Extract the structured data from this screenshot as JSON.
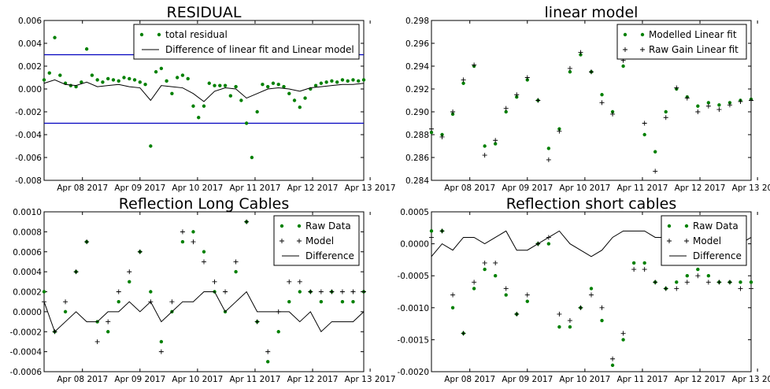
{
  "colors": {
    "green": "#008000",
    "black": "#000000",
    "blue": "#0000bf"
  },
  "chart_data": [
    {
      "type": "scatter",
      "title": "RESIDUAL",
      "x_ticks": [
        "Apr 08 2017",
        "Apr 09 2017",
        "Apr 10 2017",
        "Apr 11 2017",
        "Apr 12 2017",
        "Apr 13 2017"
      ],
      "y_ticks": [
        "0.006",
        "0.004",
        "0.002",
        "0.000",
        "-0.002",
        "-0.004",
        "-0.006",
        "-0.008"
      ],
      "ylim": [
        -0.008,
        0.006
      ],
      "legend_position": "top-right",
      "hlines": [
        0.003,
        -0.003
      ],
      "series": [
        {
          "name": "total residual",
          "marker": "dot",
          "color": "#008000",
          "x": [
            0.0,
            0.1,
            0.2,
            0.3,
            0.4,
            0.5,
            0.6,
            0.7,
            0.8,
            0.9,
            1.0,
            1.1,
            1.2,
            1.3,
            1.4,
            1.5,
            1.6,
            1.7,
            1.8,
            1.9,
            2.0,
            2.1,
            2.2,
            2.3,
            2.4,
            2.5,
            2.6,
            2.7,
            2.8,
            2.9,
            3.0,
            3.1,
            3.2,
            3.3,
            3.4,
            3.5,
            3.6,
            3.7,
            3.8,
            3.9,
            4.0,
            4.1,
            4.2,
            4.3,
            4.4,
            4.5,
            4.6,
            4.7,
            4.8,
            4.9,
            5.0,
            5.1,
            5.2,
            5.3,
            5.4,
            5.5,
            5.6,
            5.7,
            5.8,
            5.9,
            6.0
          ],
          "y": [
            0.0008,
            0.0014,
            0.0045,
            0.0012,
            0.0005,
            0.0003,
            0.0002,
            0.0006,
            0.0035,
            0.0012,
            0.0008,
            0.0006,
            0.0009,
            0.0008,
            0.0007,
            0.001,
            0.0009,
            0.0008,
            0.0006,
            0.0004,
            -0.005,
            0.0015,
            0.0018,
            0.0007,
            -0.0004,
            0.001,
            0.0012,
            0.0009,
            -0.0015,
            -0.0025,
            -0.0015,
            0.0005,
            0.0003,
            0.0003,
            0.0003,
            -0.0006,
            0.0002,
            -0.001,
            -0.003,
            -0.006,
            -0.002,
            0.0004,
            0.0002,
            0.0005,
            0.0004,
            0.0002,
            -0.0004,
            -0.001,
            -0.0016,
            -0.0008,
            0.0,
            0.0003,
            0.0005,
            0.0006,
            0.0007,
            0.0006,
            0.0008,
            0.0007,
            0.0008,
            0.0007,
            0.0008
          ]
        },
        {
          "name": "Difference of linear fit and Linear model",
          "marker": "line",
          "color": "#000000",
          "x": [
            0.0,
            0.2,
            0.4,
            0.6,
            0.8,
            1.0,
            1.2,
            1.4,
            1.6,
            1.8,
            2.0,
            2.2,
            2.4,
            2.6,
            2.8,
            3.0,
            3.2,
            3.4,
            3.6,
            3.8,
            4.0,
            4.2,
            4.4,
            4.6,
            4.8,
            5.0,
            5.2,
            5.4,
            5.6,
            5.8,
            6.0
          ],
          "y": [
            0.0005,
            0.0008,
            0.0004,
            0.0003,
            0.0006,
            0.0002,
            0.0003,
            0.0004,
            0.0002,
            0.0001,
            -0.001,
            0.0003,
            0.0002,
            0.0001,
            -0.0004,
            -0.0011,
            -0.0002,
            0.0001,
            0.0,
            -0.0008,
            -0.0004,
            0.0,
            0.0001,
            0.0,
            -0.0002,
            0.0001,
            0.0002,
            0.0003,
            0.0004,
            0.0004,
            0.0005
          ]
        }
      ]
    },
    {
      "type": "scatter",
      "title": "linear model",
      "x_ticks": [
        "Apr 08 2017",
        "Apr 09 2017",
        "Apr 10 2017",
        "Apr 11 2017",
        "Apr 12 2017",
        "Apr 13 2017"
      ],
      "y_ticks": [
        "0.298",
        "0.296",
        "0.294",
        "0.292",
        "0.290",
        "0.288",
        "0.286",
        "0.284"
      ],
      "ylim": [
        0.284,
        0.298
      ],
      "legend_position": "top-right",
      "series": [
        {
          "name": "Modelled Linear fit",
          "marker": "dot",
          "color": "#008000",
          "x": [
            0.0,
            0.2,
            0.4,
            0.6,
            0.8,
            1.0,
            1.2,
            1.4,
            1.6,
            1.8,
            2.0,
            2.2,
            2.4,
            2.6,
            2.8,
            3.0,
            3.2,
            3.4,
            3.6,
            3.8,
            4.0,
            4.2,
            4.4,
            4.6,
            4.8,
            5.0,
            5.2,
            5.4,
            5.6,
            5.8,
            6.0
          ],
          "y": [
            0.2882,
            0.288,
            0.2898,
            0.2925,
            0.294,
            0.287,
            0.2872,
            0.29,
            0.2913,
            0.2928,
            0.291,
            0.2868,
            0.2885,
            0.2935,
            0.295,
            0.2935,
            0.2915,
            0.29,
            0.294,
            0.2955,
            0.288,
            0.2865,
            0.29,
            0.292,
            0.2913,
            0.2905,
            0.2908,
            0.2906,
            0.2908,
            0.291,
            0.2911
          ]
        },
        {
          "name": "Raw Gain Linear fit",
          "marker": "plus",
          "color": "#000000",
          "x": [
            0.0,
            0.2,
            0.4,
            0.6,
            0.8,
            1.0,
            1.2,
            1.4,
            1.6,
            1.8,
            2.0,
            2.2,
            2.4,
            2.6,
            2.8,
            3.0,
            3.2,
            3.4,
            3.6,
            3.8,
            4.0,
            4.2,
            4.4,
            4.6,
            4.8,
            5.0,
            5.2,
            5.4,
            5.6,
            5.8,
            6.0
          ],
          "y": [
            0.2885,
            0.2878,
            0.29,
            0.2928,
            0.2941,
            0.2862,
            0.2875,
            0.2903,
            0.2915,
            0.293,
            0.291,
            0.2858,
            0.2883,
            0.2938,
            0.2952,
            0.2935,
            0.2908,
            0.2898,
            0.2945,
            0.296,
            0.289,
            0.2848,
            0.2895,
            0.2921,
            0.2912,
            0.29,
            0.2905,
            0.2902,
            0.2906,
            0.2909,
            0.291
          ]
        }
      ]
    },
    {
      "type": "scatter",
      "title": "Reflection Long Cables",
      "x_ticks": [
        "Apr 08 2017",
        "Apr 09 2017",
        "Apr 10 2017",
        "Apr 11 2017",
        "Apr 12 2017",
        "Apr 13 2017"
      ],
      "y_ticks": [
        "0.0010",
        "0.0008",
        "0.0006",
        "0.0004",
        "0.0002",
        "0.0000",
        "-0.0002",
        "-0.0004",
        "-0.0006"
      ],
      "ylim": [
        -0.0006,
        0.001
      ],
      "legend_position": "top-right",
      "series": [
        {
          "name": "Raw Data",
          "marker": "dot",
          "color": "#008000",
          "x": [
            0.0,
            0.2,
            0.4,
            0.6,
            0.8,
            1.0,
            1.2,
            1.4,
            1.6,
            1.8,
            2.0,
            2.2,
            2.4,
            2.6,
            2.8,
            3.0,
            3.2,
            3.4,
            3.6,
            3.8,
            4.0,
            4.2,
            4.4,
            4.6,
            4.8,
            5.0,
            5.2,
            5.4,
            5.6,
            5.8,
            6.0
          ],
          "y": [
            0.0002,
            -0.0002,
            0.0,
            0.0004,
            0.0007,
            -0.0001,
            -0.0002,
            0.0001,
            0.0003,
            0.0006,
            0.0002,
            -0.0003,
            0.0,
            0.0007,
            0.0008,
            0.0006,
            0.0002,
            0.0,
            0.0004,
            0.0009,
            -0.0001,
            -0.0005,
            -0.0002,
            0.0001,
            0.0002,
            0.0002,
            0.0001,
            0.0002,
            0.0001,
            0.0001,
            0.0002
          ]
        },
        {
          "name": "Model",
          "marker": "plus",
          "color": "#000000",
          "x": [
            0.0,
            0.2,
            0.4,
            0.6,
            0.8,
            1.0,
            1.2,
            1.4,
            1.6,
            1.8,
            2.0,
            2.2,
            2.4,
            2.6,
            2.8,
            3.0,
            3.2,
            3.4,
            3.6,
            3.8,
            4.0,
            4.2,
            4.4,
            4.6,
            4.8,
            5.0,
            5.2,
            5.4,
            5.6,
            5.8,
            6.0
          ],
          "y": [
            0.0001,
            -0.0002,
            0.0001,
            0.0004,
            0.0007,
            -0.0003,
            -0.0001,
            0.0002,
            0.0004,
            0.0006,
            0.0001,
            -0.0004,
            0.0001,
            0.0008,
            0.0007,
            0.0005,
            0.0003,
            0.0002,
            0.0005,
            0.0009,
            -0.0001,
            -0.0004,
            0.0,
            0.0003,
            0.0003,
            0.0002,
            0.0002,
            0.0002,
            0.0002,
            0.0002,
            0.0002
          ]
        },
        {
          "name": "Difference",
          "marker": "line",
          "color": "#000000",
          "x": [
            0.0,
            0.2,
            0.4,
            0.6,
            0.8,
            1.0,
            1.2,
            1.4,
            1.6,
            1.8,
            2.0,
            2.2,
            2.4,
            2.6,
            2.8,
            3.0,
            3.2,
            3.4,
            3.6,
            3.8,
            4.0,
            4.2,
            4.4,
            4.6,
            4.8,
            5.0,
            5.2,
            5.4,
            5.6,
            5.8,
            6.0
          ],
          "y": [
            0.0001,
            -0.0002,
            -0.0001,
            0.0,
            -0.0001,
            -0.0001,
            0.0,
            0.0,
            0.0001,
            0.0,
            0.0001,
            -0.0001,
            0.0,
            0.0001,
            0.0001,
            0.0002,
            0.0002,
            0.0,
            0.0001,
            0.0002,
            0.0,
            0.0,
            0.0,
            0.0,
            -0.0001,
            0.0,
            -0.0002,
            -0.0001,
            -0.0001,
            -0.0001,
            0.0
          ]
        }
      ]
    },
    {
      "type": "scatter",
      "title": "Reflection short cables",
      "x_ticks": [
        "Apr 08 2017",
        "Apr 09 2017",
        "Apr 10 2017",
        "Apr 11 2017",
        "Apr 12 2017",
        "Apr 13 2017"
      ],
      "y_ticks": [
        "0.0005",
        "0.0000",
        "-0.0005",
        "-0.0010",
        "-0.0015",
        "-0.0020"
      ],
      "ylim": [
        -0.002,
        0.0005
      ],
      "legend_position": "top-right",
      "series": [
        {
          "name": "Raw Data",
          "marker": "dot",
          "color": "#008000",
          "x": [
            0.0,
            0.2,
            0.4,
            0.6,
            0.8,
            1.0,
            1.2,
            1.4,
            1.6,
            1.8,
            2.0,
            2.2,
            2.4,
            2.6,
            2.8,
            3.0,
            3.2,
            3.4,
            3.6,
            3.8,
            4.0,
            4.2,
            4.4,
            4.6,
            4.8,
            5.0,
            5.2,
            5.4,
            5.6,
            5.8,
            6.0
          ],
          "y": [
            0.0002,
            0.0002,
            -0.001,
            -0.0014,
            -0.0007,
            -0.0004,
            -0.0005,
            -0.0008,
            -0.0011,
            -0.0009,
            0.0,
            0.0,
            -0.0013,
            -0.0013,
            -0.001,
            -0.0007,
            -0.0012,
            -0.0019,
            -0.0015,
            -0.0003,
            -0.0003,
            -0.0006,
            -0.0007,
            -0.0006,
            -0.0005,
            -0.0004,
            -0.0005,
            -0.0006,
            -0.0006,
            -0.0006,
            -0.0006
          ]
        },
        {
          "name": "Model",
          "marker": "plus",
          "color": "#000000",
          "x": [
            0.0,
            0.2,
            0.4,
            0.6,
            0.8,
            1.0,
            1.2,
            1.4,
            1.6,
            1.8,
            2.0,
            2.2,
            2.4,
            2.6,
            2.8,
            3.0,
            3.2,
            3.4,
            3.6,
            3.8,
            4.0,
            4.2,
            4.4,
            4.6,
            4.8,
            5.0,
            5.2,
            5.4,
            5.6,
            5.8,
            6.0
          ],
          "y": [
            0.0001,
            0.0002,
            -0.0008,
            -0.0014,
            -0.0006,
            -0.0003,
            -0.0003,
            -0.0007,
            -0.0011,
            -0.0008,
            0.0,
            0.0001,
            -0.0011,
            -0.0012,
            -0.001,
            -0.0008,
            -0.001,
            -0.0018,
            -0.0014,
            -0.0004,
            -0.0004,
            -0.0006,
            -0.0007,
            -0.0007,
            -0.0006,
            -0.0005,
            -0.0006,
            -0.0006,
            -0.0006,
            -0.0007,
            -0.0007
          ]
        },
        {
          "name": "Difference",
          "marker": "line",
          "color": "#000000",
          "x": [
            0.0,
            0.2,
            0.4,
            0.6,
            0.8,
            1.0,
            1.2,
            1.4,
            1.6,
            1.8,
            2.0,
            2.2,
            2.4,
            2.6,
            2.8,
            3.0,
            3.2,
            3.4,
            3.6,
            3.8,
            4.0,
            4.2,
            4.4,
            4.6,
            4.8,
            5.0,
            5.2,
            5.4,
            5.6,
            5.8,
            6.0
          ],
          "y": [
            -0.0002,
            0.0,
            -0.0001,
            0.0001,
            0.0001,
            0.0,
            0.0001,
            0.0002,
            -0.0001,
            -0.0001,
            0.0,
            0.0001,
            0.0002,
            0.0,
            -0.0001,
            -0.0002,
            -0.0001,
            0.0001,
            0.0002,
            0.0002,
            0.0002,
            0.0001,
            0.0001,
            0.0001,
            0.0001,
            0.0001,
            0.0001,
            0.0001,
            0.0001,
            0.0,
            0.0001
          ]
        }
      ]
    }
  ]
}
